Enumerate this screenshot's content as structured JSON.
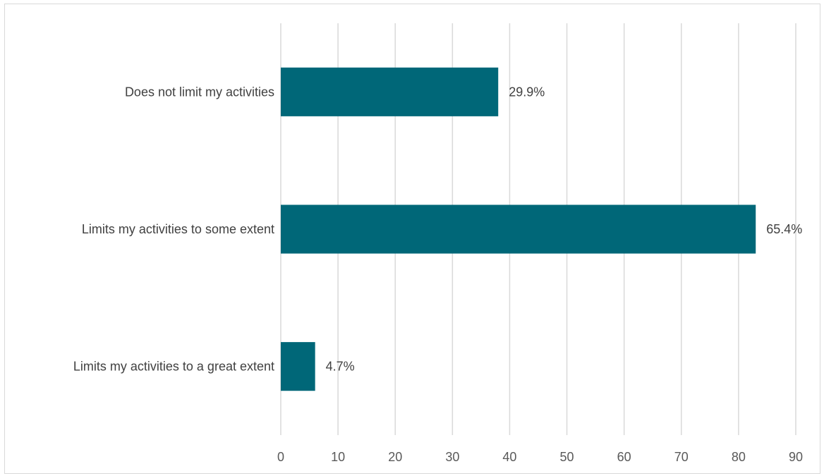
{
  "chart_data": {
    "type": "bar",
    "orientation": "horizontal",
    "categories": [
      "Does not limit my activities",
      "Limits my activities to some extent",
      "Limits my activities to a great extent"
    ],
    "series": [
      {
        "values": [
          38,
          83,
          6
        ],
        "data_labels": [
          "29.9%",
          "65.4%",
          "4.7%"
        ]
      }
    ],
    "xlim": [
      0,
      90
    ],
    "x_ticks": [
      "0",
      "10",
      "20",
      "30",
      "40",
      "50",
      "60",
      "70",
      "80",
      "90"
    ],
    "grid": "vertical",
    "bar_color": "#006778",
    "title": "",
    "xlabel": "",
    "ylabel": ""
  }
}
